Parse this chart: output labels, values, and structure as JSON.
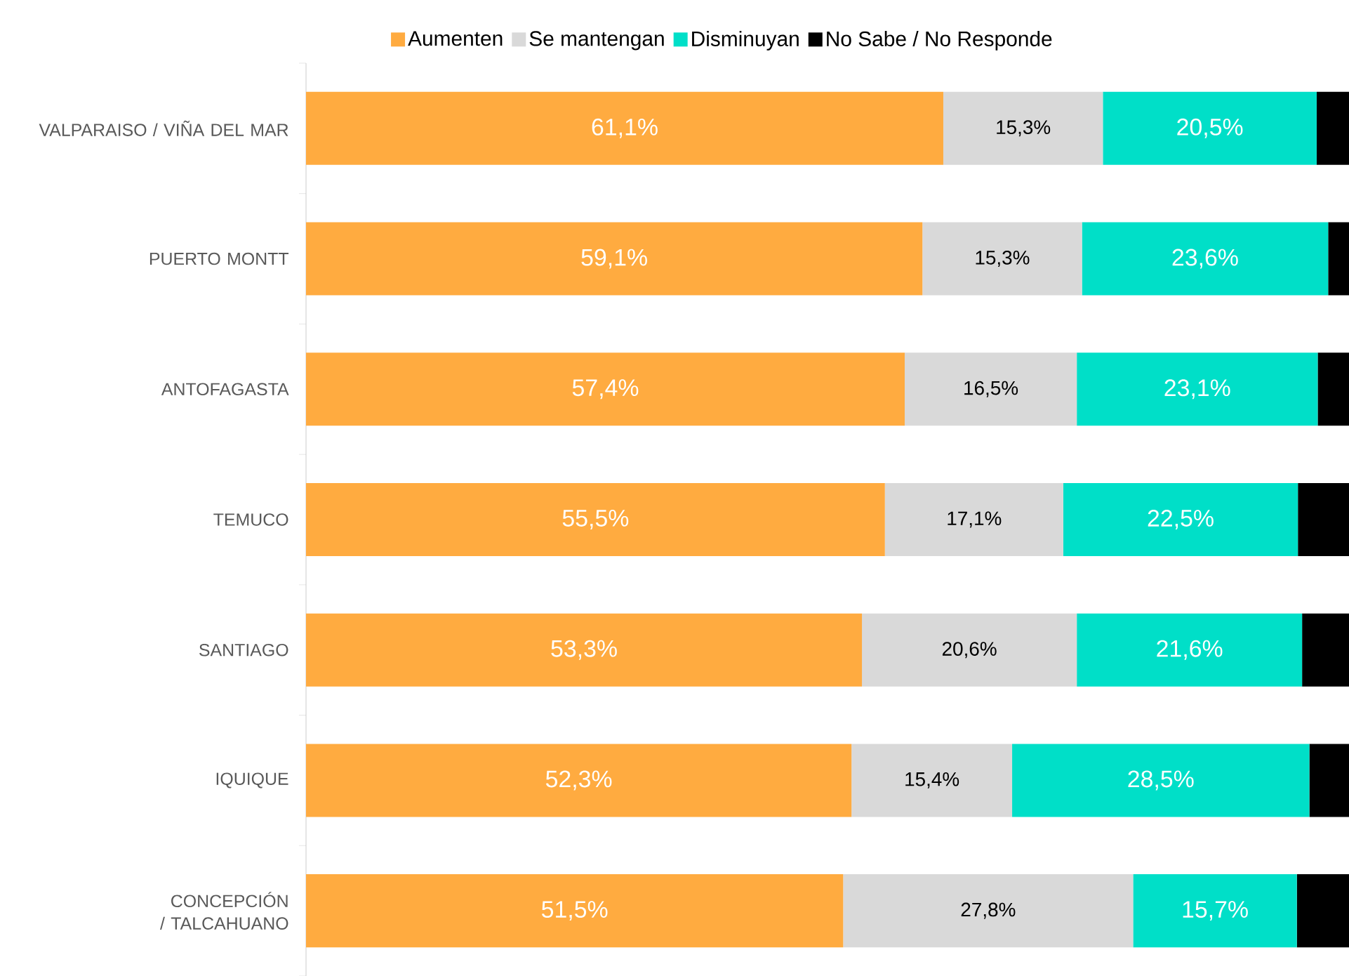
{
  "chart_data": {
    "type": "bar",
    "orientation": "horizontal",
    "stacked": true,
    "categories": [
      "VALPARAISO / VIÑA DEL MAR",
      "PUERTO MONTT",
      "ANTOFAGASTA",
      "TEMUCO",
      "SANTIAGO",
      "IQUIQUE",
      "CONCEPCIÓN / TALCAHUANO"
    ],
    "legend": "top",
    "series": [
      {
        "name": "Aumenten",
        "color": "#ffab40",
        "values": [
          61.1,
          59.1,
          57.4,
          55.5,
          53.3,
          52.3,
          51.5
        ],
        "value_labels": [
          "61,1%",
          "59,1%",
          "57,4%",
          "55,5%",
          "53,3%",
          "52,3%",
          "51,5%"
        ]
      },
      {
        "name": "Se mantengan",
        "color": "#d9d9d9",
        "values": [
          15.3,
          15.3,
          16.5,
          17.1,
          20.6,
          15.4,
          27.8
        ],
        "value_labels": [
          "15,3%",
          "15,3%",
          "16,5%",
          "17,1%",
          "20,6%",
          "15,4%",
          "27,8%"
        ]
      },
      {
        "name": "Disminuyan",
        "color": "#00dfc8",
        "values": [
          20.5,
          23.6,
          23.1,
          22.5,
          21.6,
          28.5,
          15.7
        ],
        "value_labels": [
          "20,5%",
          "23,6%",
          "23,1%",
          "22,5%",
          "21,6%",
          "28,5%",
          "15,7%"
        ]
      },
      {
        "name": "No Sabe / No Responde",
        "color": "#000000",
        "values": [
          3.1,
          2.0,
          3.0,
          4.9,
          4.5,
          3.8,
          5.0
        ]
      }
    ]
  }
}
